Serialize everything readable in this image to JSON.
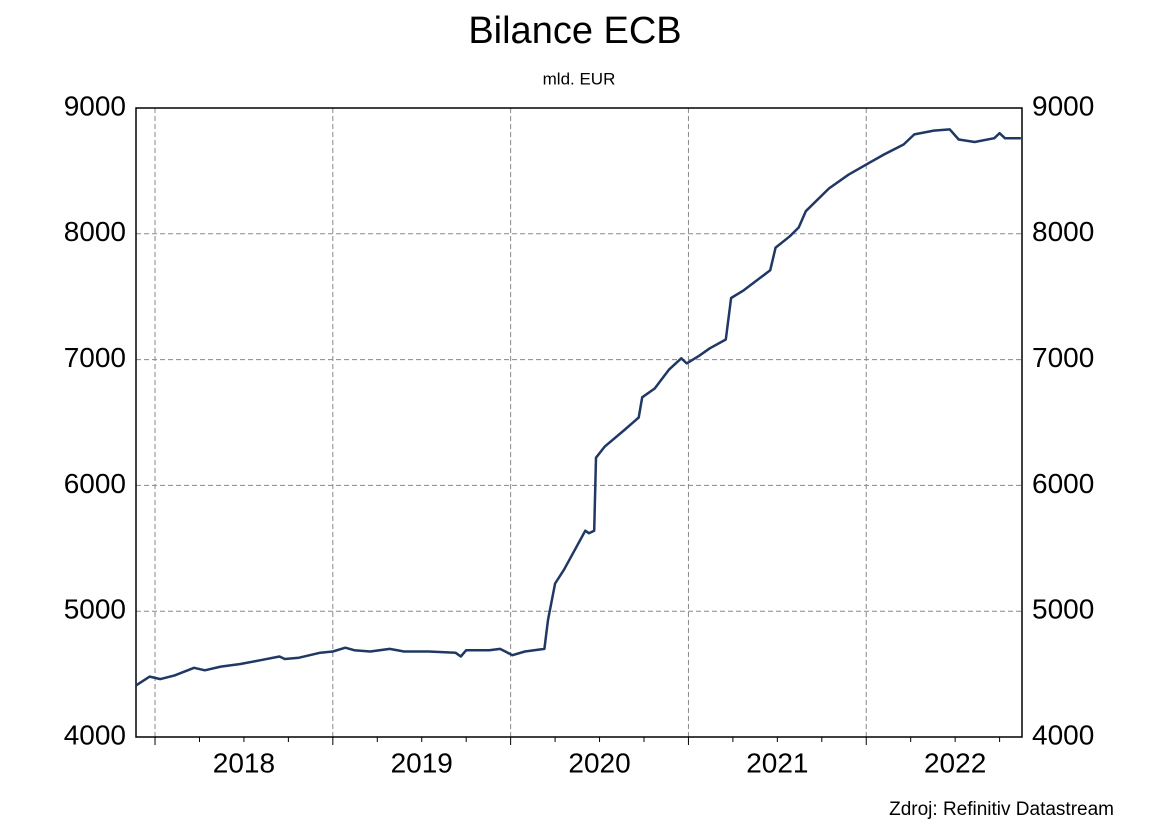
{
  "chart_data": {
    "type": "line",
    "title": "Bilance ECB",
    "subtitle": "mld. EUR",
    "source": "Zdroj: Refinitiv Datastream",
    "x": [
      2017.893,
      2017.97,
      2018.03,
      2018.11,
      2018.22,
      2018.28,
      2018.37,
      2018.48,
      2018.59,
      2018.7,
      2018.73,
      2018.81,
      2018.93,
      2019.0,
      2019.07,
      2019.12,
      2019.21,
      2019.32,
      2019.4,
      2019.54,
      2019.69,
      2019.72,
      2019.75,
      2019.88,
      2019.94,
      2019.97,
      2020.01,
      2020.08,
      2020.19,
      2020.21,
      2020.25,
      2020.3,
      2020.42,
      2020.44,
      2020.47,
      2020.48,
      2020.53,
      2020.64,
      2020.72,
      2020.74,
      2020.81,
      2020.89,
      2020.96,
      2020.99,
      2021.06,
      2021.12,
      2021.21,
      2021.24,
      2021.31,
      2021.46,
      2021.49,
      2021.57,
      2021.62,
      2021.66,
      2021.79,
      2021.9,
      2022.0,
      2022.1,
      2022.21,
      2022.27,
      2022.38,
      2022.47,
      2022.52,
      2022.61,
      2022.72,
      2022.75,
      2022.78,
      2022.87
    ],
    "series": [
      {
        "name": "Bilance ECB",
        "color": "#1f3864",
        "values": [
          4410,
          4480,
          4460,
          4490,
          4550,
          4530,
          4560,
          4580,
          4610,
          4640,
          4620,
          4630,
          4670,
          4680,
          4710,
          4690,
          4680,
          4700,
          4680,
          4680,
          4670,
          4640,
          4690,
          4690,
          4700,
          4680,
          4650,
          4680,
          4700,
          4930,
          5220,
          5330,
          5640,
          5620,
          5640,
          6220,
          6310,
          6440,
          6540,
          6700,
          6770,
          6920,
          7010,
          6970,
          7030,
          7090,
          7160,
          7490,
          7550,
          7710,
          7890,
          7980,
          8050,
          8180,
          8360,
          8470,
          8550,
          8630,
          8710,
          8790,
          8820,
          8830,
          8750,
          8730,
          8760,
          8800,
          8760,
          8760
        ]
      }
    ],
    "xlim": [
      2017.893,
      2022.876
    ],
    "xticks": [
      2018,
      2019,
      2020,
      2021,
      2022
    ],
    "ylim": [
      4000,
      9000
    ],
    "yticks": [
      4000,
      5000,
      6000,
      7000,
      8000,
      9000
    ],
    "grid": true
  }
}
